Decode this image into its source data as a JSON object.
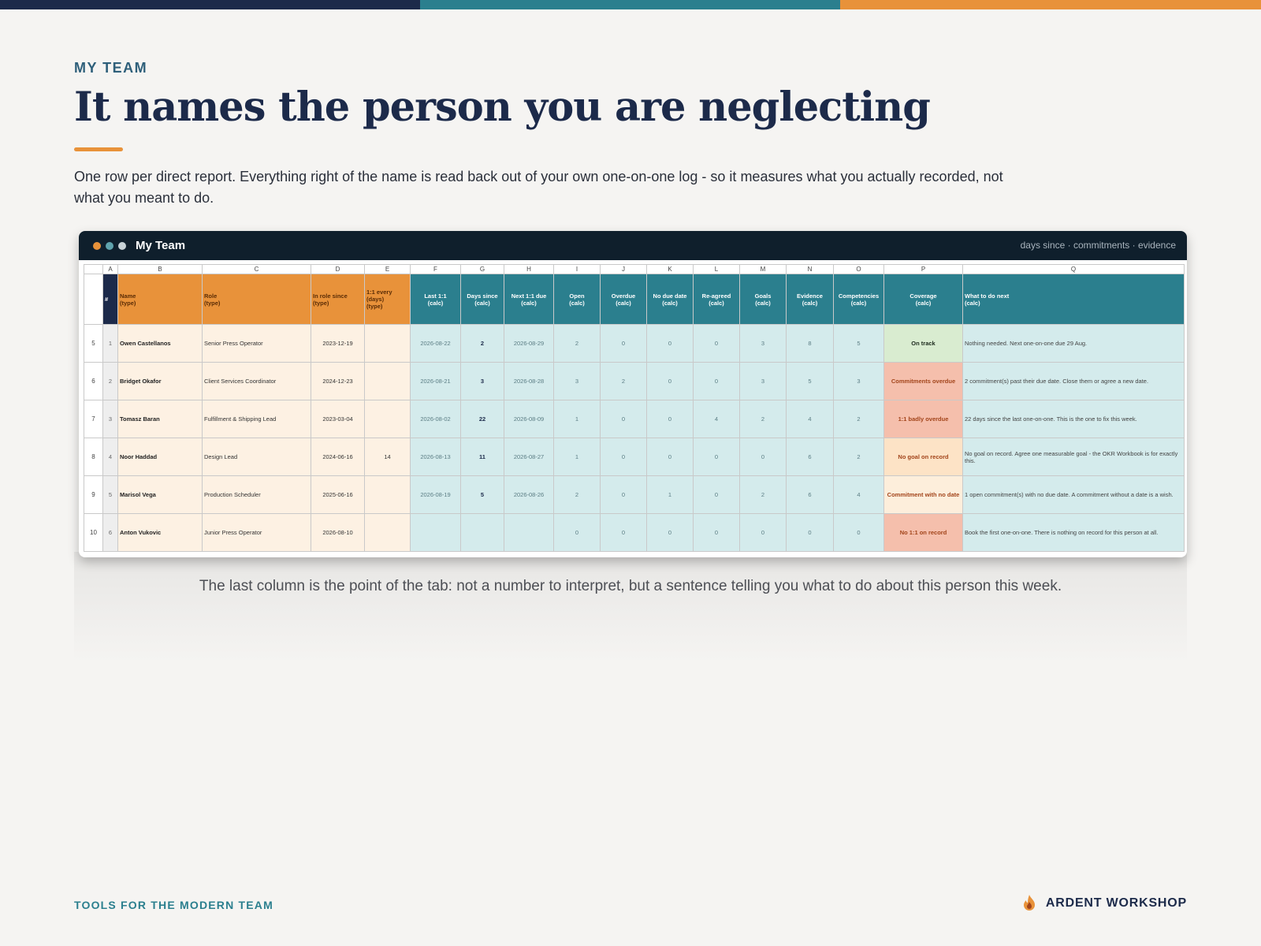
{
  "kicker": "MY TEAM",
  "title": "It names the person you are neglecting",
  "intro": "One row per direct report. Everything right of the name is read back out of your own one-on-one log - so it measures what you actually recorded, not what you meant to do.",
  "window": {
    "title": "My Team",
    "subtitle": "days since · commitments · evidence"
  },
  "sheet": {
    "columns": [
      "A",
      "B",
      "C",
      "D",
      "E",
      "F",
      "G",
      "H",
      "I",
      "J",
      "K",
      "L",
      "M",
      "N",
      "O",
      "P",
      "Q"
    ],
    "header_row": 4,
    "header": [
      "#",
      "Name\n(type)",
      "Role\n(type)",
      "In role since\n(type)",
      "1:1 every\n(days)\n(type)",
      "Last 1:1\n(calc)",
      "Days since\n(calc)",
      "Next 1:1 due\n(calc)",
      "Open\n(calc)",
      "Overdue\n(calc)",
      "No due date\n(calc)",
      "Re-agreed\n(calc)",
      "Goals\n(calc)",
      "Evidence\n(calc)",
      "Competencies\n(calc)",
      "Coverage\n(calc)",
      "What to do next\n(calc)"
    ],
    "rows": [
      {
        "row": 5,
        "cells": [
          1,
          "Owen Castellanos",
          "Senior Press Operator",
          "2023-12-19",
          null,
          "2026-08-22",
          2,
          "2026-08-29",
          2,
          0,
          0,
          0,
          3,
          8,
          5,
          "On track",
          "Nothing needed. Next one-on-one due 29 Aug."
        ]
      },
      {
        "row": 6,
        "cells": [
          2,
          "Bridget Okafor",
          "Client Services Coordinator",
          "2024-12-23",
          null,
          "2026-08-21",
          3,
          "2026-08-28",
          3,
          2,
          0,
          0,
          3,
          5,
          3,
          "Commitments overdue",
          "2 commitment(s) past their due date. Close them or agree a new date."
        ]
      },
      {
        "row": 7,
        "cells": [
          3,
          "Tomasz Baran",
          "Fulfillment & Shipping Lead",
          "2023-03-04",
          null,
          "2026-08-02",
          22,
          "2026-08-09",
          1,
          0,
          0,
          4,
          2,
          4,
          2,
          "1:1 badly overdue",
          "22 days since the last one-on-one. This is the one to fix this week."
        ]
      },
      {
        "row": 8,
        "cells": [
          4,
          "Noor Haddad",
          "Design Lead",
          "2024-06-16",
          14,
          "2026-08-13",
          11,
          "2026-08-27",
          1,
          0,
          0,
          0,
          0,
          6,
          2,
          "No goal on record",
          "No goal on record. Agree one measurable goal - the OKR Workbook is for exactly this."
        ]
      },
      {
        "row": 9,
        "cells": [
          5,
          "Marisol Vega",
          "Production Scheduler",
          "2025-06-16",
          null,
          "2026-08-19",
          5,
          "2026-08-26",
          2,
          0,
          1,
          0,
          2,
          6,
          4,
          "Commitment with no date",
          "1 open commitment(s) with no due date. A commitment without a date is a wish."
        ]
      },
      {
        "row": 10,
        "cells": [
          6,
          "Anton Vukovic",
          "Junior Press Operator",
          "2026-08-10",
          null,
          null,
          null,
          null,
          0,
          0,
          0,
          0,
          0,
          0,
          0,
          "No 1:1 on record",
          "Book the first one-on-one. There is nothing on record for this person at all."
        ]
      }
    ]
  },
  "caption": "The last column is the point of the tab: not a number to interpret, but a sentence telling you what to do about this person this week.",
  "footer": {
    "left": "TOOLS FOR THE MODERN TEAM",
    "brand": "ARDENT WORKSHOP"
  }
}
